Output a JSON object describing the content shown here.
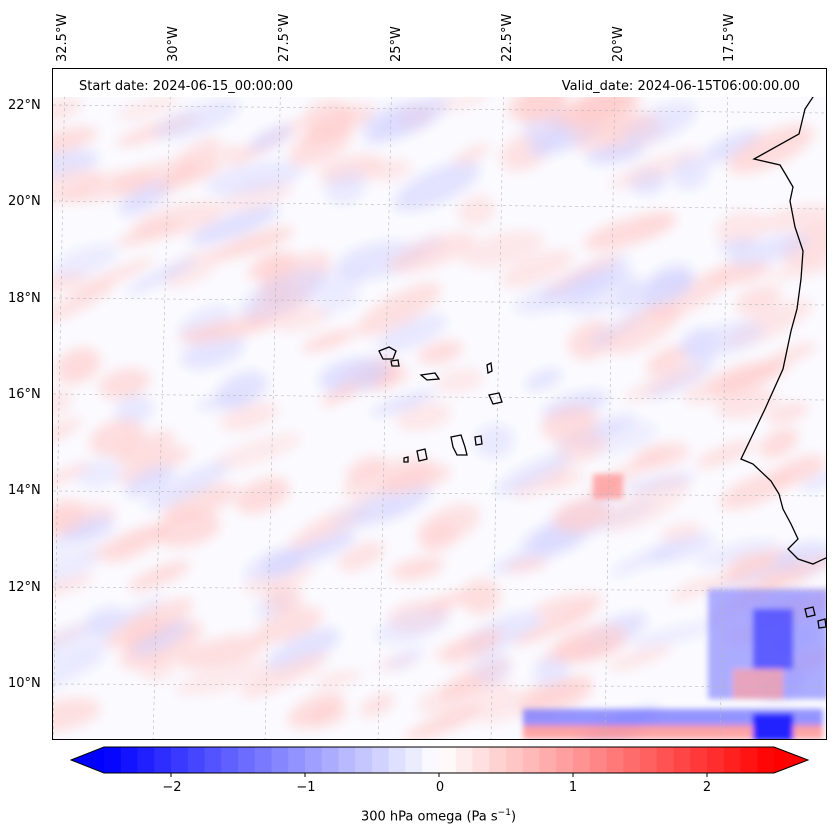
{
  "map": {
    "start_date": "Start date: 2024-06-15_00:00:00",
    "valid_date": "Valid_date: 2024-06-15T06:00:00.00",
    "lon_labels": [
      "32.5°W",
      "30°W",
      "27.5°W",
      "25°W",
      "22.5°W",
      "20°W",
      "17.5°W"
    ],
    "lat_labels": [
      "22°N",
      "20°N",
      "18°N",
      "16°N",
      "14°N",
      "12°N",
      "10°N"
    ],
    "gridlines": true,
    "field": "300 hPa omega",
    "colormap": "bwr",
    "colors": {
      "min": "#0000ff",
      "mid": "#ffffff",
      "max": "#ff0000",
      "coast": "#000000"
    }
  },
  "colorbar": {
    "ticks": [
      "−2",
      "−1",
      "0",
      "1",
      "2"
    ],
    "tick_values": [
      -2,
      -1,
      0,
      1,
      2
    ],
    "range": [
      -2.5,
      2.5
    ],
    "extend": "both",
    "label_main": "300 hPa omega (Pa s",
    "label_sup": "−1",
    "label_close": ")"
  }
}
